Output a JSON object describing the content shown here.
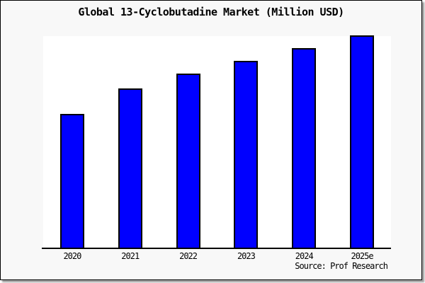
{
  "chart_data": {
    "type": "bar",
    "title": "Global 13-Cyclobutadine Market (Million USD)",
    "categories": [
      "2020",
      "2021",
      "2022",
      "2023",
      "2024",
      "2025e"
    ],
    "values": [
      63,
      75,
      82,
      88,
      94,
      100
    ],
    "xlabel": "",
    "ylabel": "",
    "ylim": [
      0,
      100
    ],
    "y_axis_visible": false,
    "grid": false,
    "legend": "none",
    "values_note": "no y-axis ticks shown; values estimated relative to tallest bar = 100"
  },
  "source": {
    "label": "Source: Prof Research"
  },
  "colors": {
    "bar_fill": "#0000ff",
    "bar_border": "#000000",
    "plot_background": "#ffffff",
    "canvas_background": "#f8f8f8",
    "canvas_border": "#000000",
    "text": "#000000"
  }
}
